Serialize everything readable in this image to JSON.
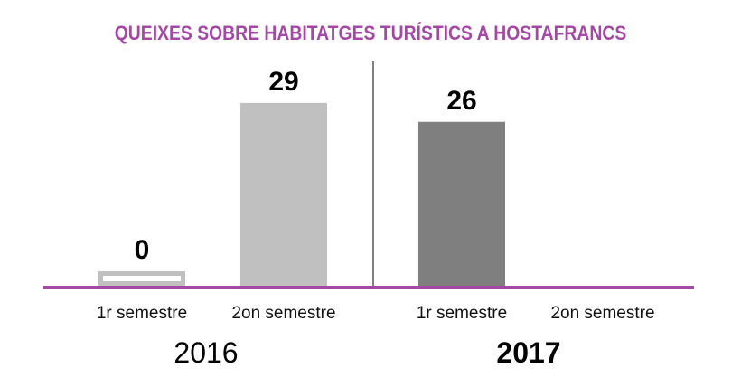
{
  "chart_data": {
    "type": "bar",
    "title": "QUEIXES SOBRE HABITATGES TURÍSTICS A HOSTAFRANCS",
    "groups": [
      {
        "year": "2016",
        "bold": false,
        "bars": [
          {
            "category": "1r semestre",
            "value": 0,
            "label": "0",
            "color": "#c0c0c0",
            "style": "outline"
          },
          {
            "category": "2on semestre",
            "value": 29,
            "label": "29",
            "color": "#c0c0c0",
            "style": "fill"
          }
        ]
      },
      {
        "year": "2017",
        "bold": true,
        "bars": [
          {
            "category": "1r semestre",
            "value": 26,
            "label": "26",
            "color": "#7f7f7f",
            "style": "fill"
          },
          {
            "category": "2on semestre",
            "value": null,
            "label": null,
            "color": "#7f7f7f",
            "style": "fill"
          }
        ]
      }
    ],
    "axis_color": "#a349a4",
    "ylim": [
      0,
      30
    ]
  }
}
